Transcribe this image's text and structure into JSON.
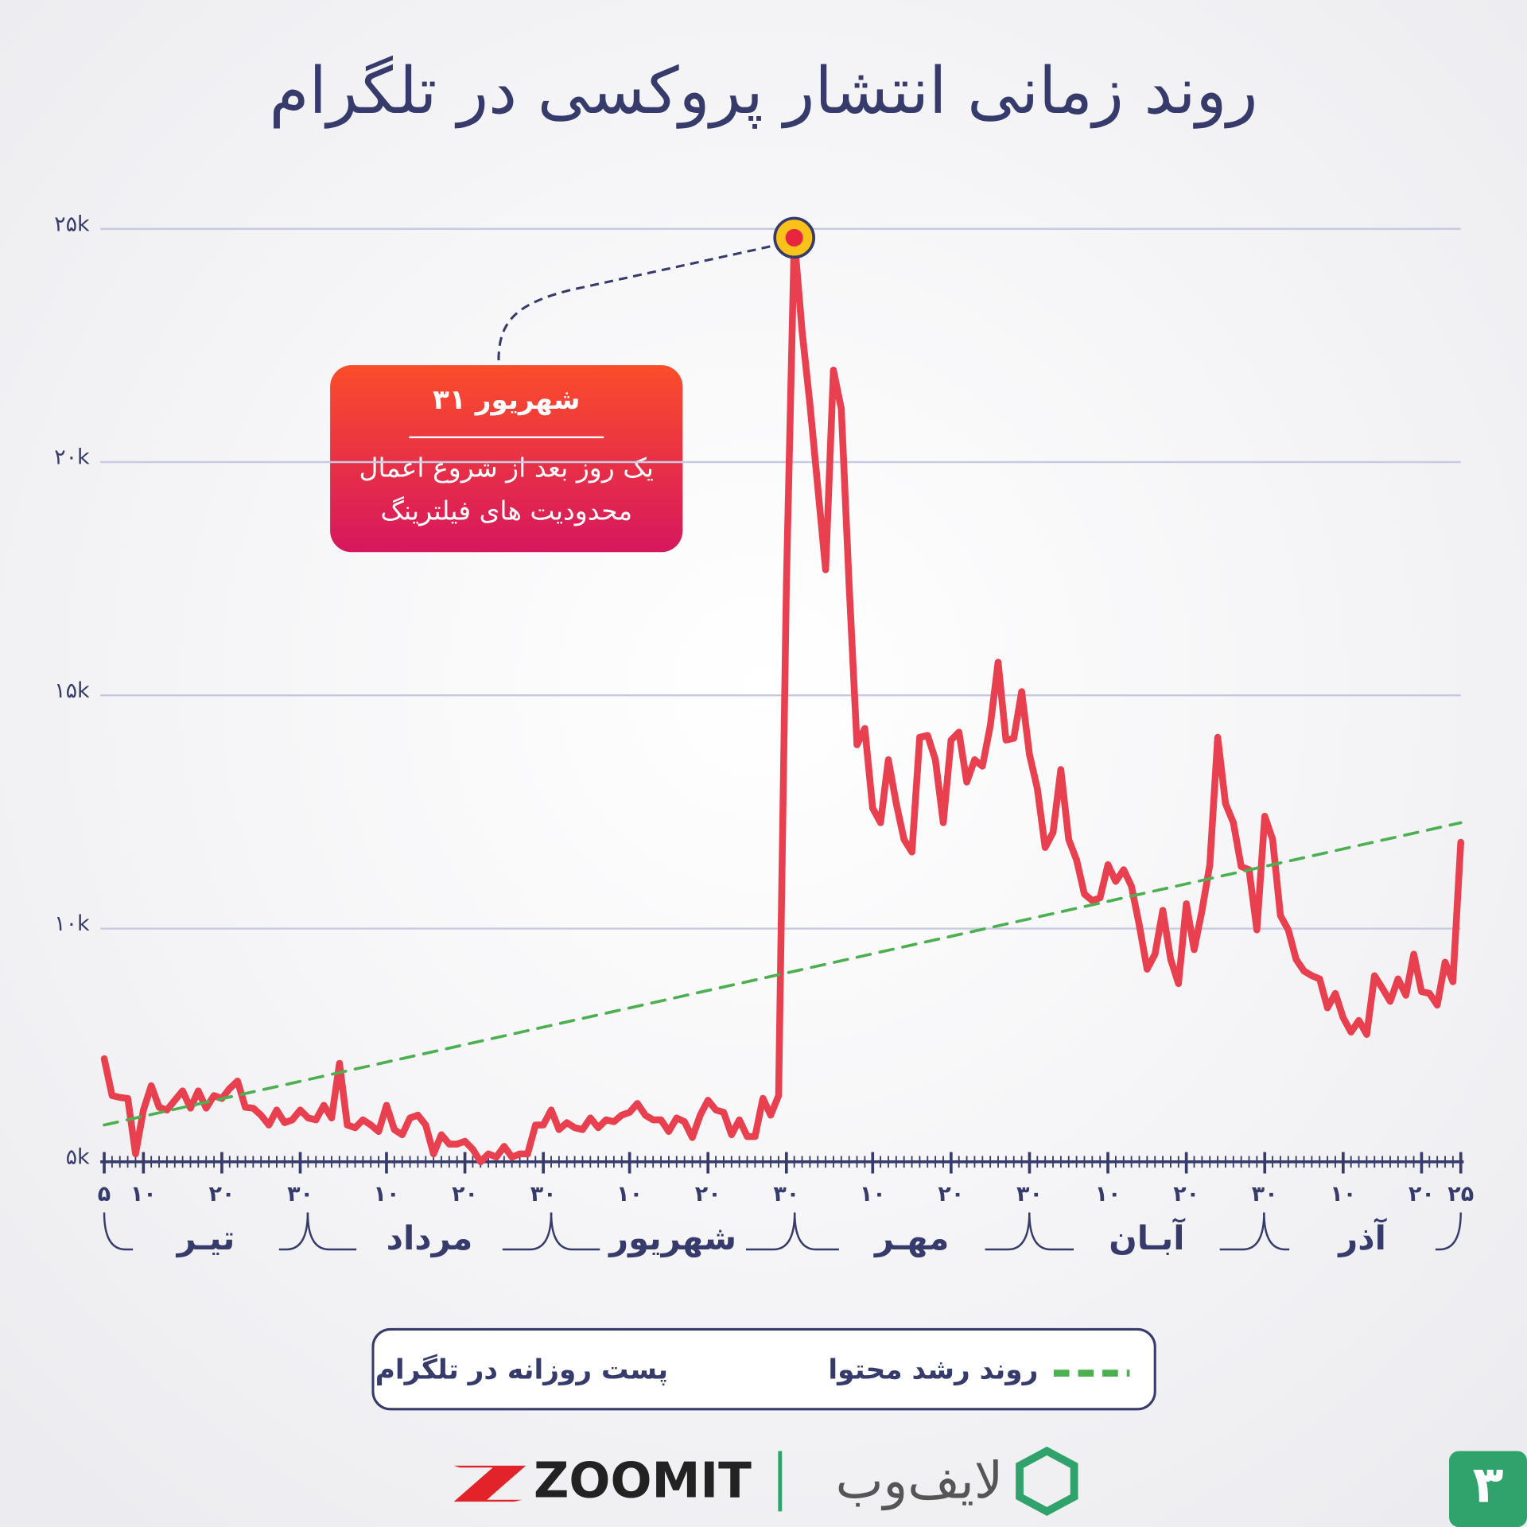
{
  "chart_data": {
    "type": "line",
    "title": "روند زمانی انتشار پروکسی در تلگرام",
    "x": [
      0,
      1,
      2,
      3,
      4,
      5,
      6,
      7,
      8,
      9,
      10,
      11,
      12,
      13,
      14,
      15,
      16,
      17,
      18,
      19,
      20,
      21,
      22,
      23,
      24,
      25,
      26,
      27,
      28,
      29,
      30,
      31,
      32,
      33,
      34,
      35,
      36,
      37,
      38,
      39,
      40,
      41,
      42,
      43,
      44,
      45,
      46,
      47,
      48,
      49,
      50,
      51,
      52,
      53,
      54,
      55,
      56,
      57,
      58,
      59,
      60,
      61,
      62,
      63,
      64,
      65,
      66,
      67,
      68,
      69,
      70,
      71,
      72,
      73,
      74,
      75,
      76,
      77,
      78,
      79,
      80,
      81,
      82,
      83,
      84,
      85,
      86,
      87,
      88,
      89,
      90,
      91,
      92,
      93,
      94,
      95,
      96,
      97,
      98,
      99,
      100,
      101,
      102,
      103,
      104,
      105,
      106,
      107,
      108,
      109,
      110,
      111,
      112,
      113,
      114,
      115,
      116,
      117,
      118,
      119,
      120,
      121,
      122,
      123,
      124,
      125,
      126,
      127,
      128,
      129,
      130,
      131,
      132,
      133,
      134,
      135,
      136,
      137,
      138,
      139,
      140,
      141,
      142,
      143,
      144,
      145,
      146,
      147,
      148,
      149,
      150,
      151,
      152,
      153,
      154,
      155,
      156,
      157,
      158,
      159,
      160,
      161,
      162,
      163,
      164,
      165,
      166,
      167,
      168,
      169,
      170,
      171,
      172,
      173
    ],
    "series": [
      {
        "name": "پست روزانه در تلگرام",
        "color": "#e8404f",
        "values": [
          7210,
          6420,
          6380,
          6360,
          5170,
          6110,
          6630,
          6170,
          6110,
          6320,
          6520,
          6150,
          6520,
          6150,
          6420,
          6360,
          6570,
          6730,
          6170,
          6150,
          6000,
          5790,
          6110,
          5840,
          5900,
          6110,
          5940,
          5900,
          6210,
          5940,
          7110,
          5790,
          5730,
          5900,
          5790,
          5650,
          6210,
          5690,
          5580,
          5940,
          6000,
          5790,
          5170,
          5580,
          5380,
          5380,
          5440,
          5270,
          5000,
          5170,
          5100,
          5330,
          5100,
          5170,
          5170,
          5790,
          5790,
          6110,
          5690,
          5840,
          5730,
          5690,
          5940,
          5730,
          5900,
          5860,
          6000,
          6060,
          6250,
          6000,
          5900,
          5900,
          5650,
          5940,
          5860,
          5520,
          6000,
          6320,
          6110,
          6060,
          5580,
          5900,
          5540,
          5540,
          6360,
          6000,
          6420,
          17380,
          24810,
          22810,
          21240,
          19470,
          17690,
          21970,
          21140,
          17380,
          13940,
          14290,
          12580,
          12270,
          13620,
          12680,
          11910,
          11640,
          14100,
          14140,
          13620,
          12270,
          14040,
          14210,
          13140,
          13620,
          13480,
          14350,
          15710,
          14040,
          14080,
          15080,
          13730,
          13000,
          11740,
          12060,
          13410,
          11910,
          11470,
          10740,
          10600,
          10660,
          11370,
          11010,
          11260,
          10910,
          10070,
          9130,
          9450,
          10390,
          9340,
          8820,
          10530,
          9550,
          10390,
          11370,
          14100,
          12680,
          12270,
          11330,
          11260,
          9970,
          12410,
          11910,
          10280,
          9970,
          9340,
          9090,
          8990,
          8920,
          8300,
          8610,
          8090,
          7780,
          8030,
          7730,
          8990,
          8720,
          8440,
          8920,
          8570,
          9450,
          8650,
          8610,
          8360,
          9280,
          8860,
          11850
        ]
      },
      {
        "name": "روند رشد محتوا",
        "color": "#4caf50",
        "dashed": true,
        "x": [
          0,
          173
        ],
        "values": [
          5790,
          12270
        ]
      }
    ],
    "xlim": [
      0,
      173
    ],
    "xticks": [
      {
        "value": 0,
        "label": "۵"
      },
      {
        "value": 5,
        "label": "۱۰"
      },
      {
        "value": 15,
        "label": "۲۰"
      },
      {
        "value": 25,
        "label": "۳۰"
      },
      {
        "value": 36,
        "label": "۱۰"
      },
      {
        "value": 46,
        "label": "۲۰"
      },
      {
        "value": 56,
        "label": "۳۰"
      },
      {
        "value": 67,
        "label": "۱۰"
      },
      {
        "value": 77,
        "label": "۲۰"
      },
      {
        "value": 87,
        "label": "۳۰"
      },
      {
        "value": 98,
        "label": "۱۰"
      },
      {
        "value": 108,
        "label": "۲۰"
      },
      {
        "value": 118,
        "label": "۳۰"
      },
      {
        "value": 128,
        "label": "۱۰"
      },
      {
        "value": 138,
        "label": "۲۰"
      },
      {
        "value": 148,
        "label": "۳۰"
      },
      {
        "value": 158,
        "label": "۱۰"
      },
      {
        "value": 168,
        "label": "۲۰"
      },
      {
        "value": 173,
        "label": "۲۵"
      }
    ],
    "months": [
      "تیـر",
      "مرداد",
      "شهریور",
      "مهـر",
      "آبـان",
      "آذر"
    ],
    "ylim": [
      5000,
      25000
    ],
    "yticks": [
      {
        "value": 5000,
        "label": "۵k"
      },
      {
        "value": 10000,
        "label": "۱۰k"
      },
      {
        "value": 15000,
        "label": "۱۵k"
      },
      {
        "value": 20000,
        "label": "۲۰k"
      },
      {
        "value": 25000,
        "label": "۲۵k"
      }
    ],
    "grid": true,
    "legend": "bottom",
    "annotation": {
      "title": "۳۱ شهریور",
      "lines": [
        "یک روز بعد از شروع اعمال",
        "محدودیت های فیلترینگ"
      ]
    }
  },
  "branding": {
    "zoomit": "ZOOMIT",
    "lifeweb": "لایف‌وب",
    "page": "۳"
  }
}
